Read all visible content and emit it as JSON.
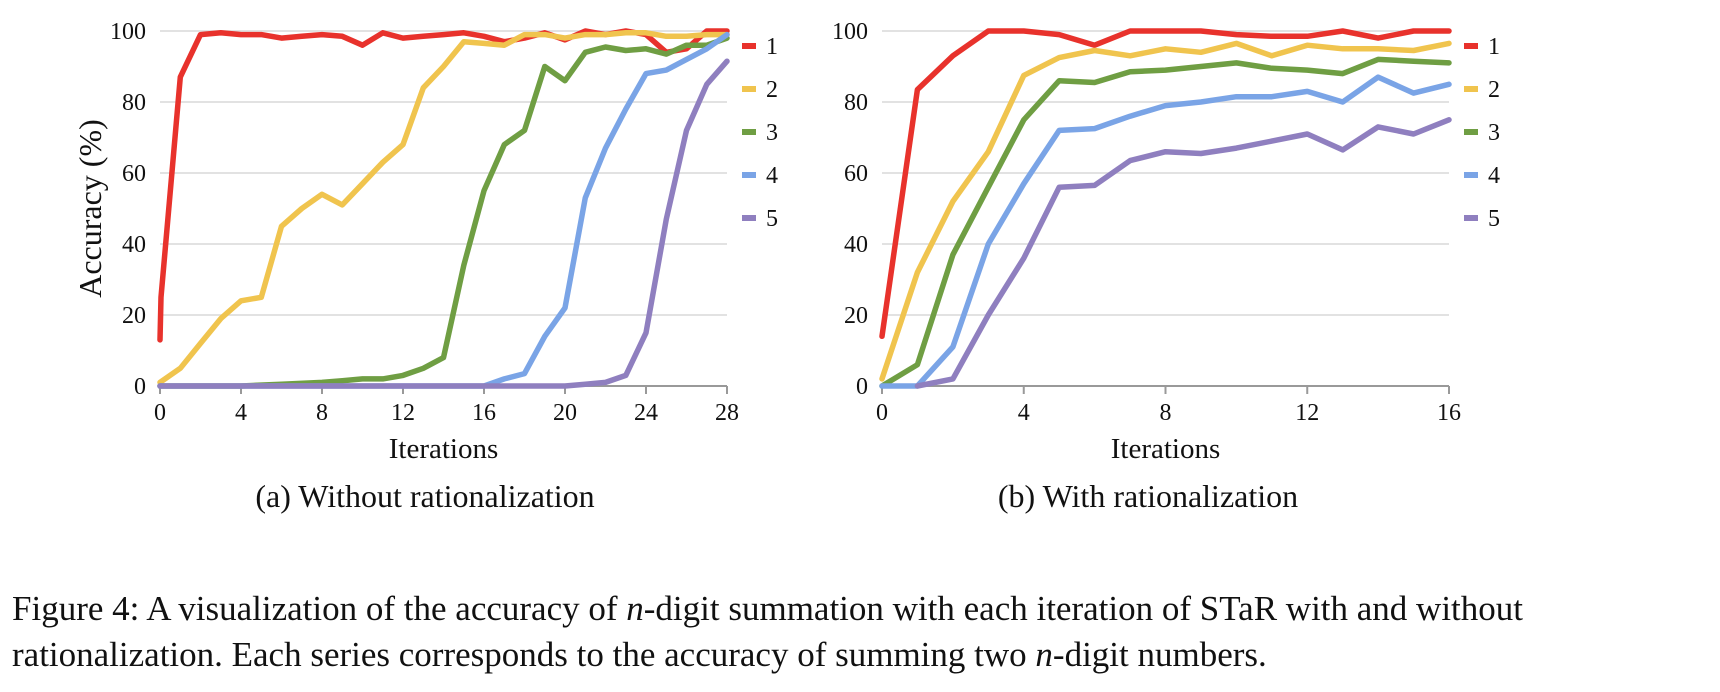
{
  "figure": {
    "caption": {
      "label": "Figure 4:",
      "part1": "A visualization of the accuracy of",
      "n1": "n",
      "part2": "-digit summation with each iteration of STaR with and without rationalization. Each series corresponds to the accuracy of summing two",
      "n2": "n",
      "part3": "-digit numbers."
    }
  },
  "colors": {
    "1": "#e8322c",
    "2": "#f0c44e",
    "3": "#6f9e43",
    "4": "#7aa4e6",
    "5": "#8f7fbf",
    "grid": "#d9d9d9",
    "axis": "#999999"
  },
  "chart_data": [
    {
      "type": "line",
      "subtitle": "(a) Without rationalization",
      "xlabel": "Iterations",
      "ylabel": "Accuracy (%)",
      "xlim": [
        0,
        28
      ],
      "ylim": [
        0,
        100
      ],
      "xticks": [
        0,
        4,
        8,
        12,
        16,
        20,
        24,
        28
      ],
      "yticks": [
        0,
        20,
        40,
        60,
        80,
        100
      ],
      "grid": "horizontal",
      "legend": "right",
      "series": [
        {
          "name": "1",
          "x": [
            0,
            0.05,
            1,
            2,
            3,
            4,
            5,
            6,
            7,
            8,
            9,
            10,
            11,
            12,
            13,
            14,
            15,
            16,
            17,
            18,
            19,
            20,
            21,
            22,
            23,
            24,
            25,
            26,
            27,
            28
          ],
          "values": [
            13,
            25,
            87,
            99,
            99.5,
            99,
            99,
            98,
            98.5,
            99,
            98.5,
            96,
            99.5,
            98,
            98.5,
            99,
            99.5,
            98.5,
            97,
            98,
            99.5,
            97.5,
            100,
            99,
            100,
            99,
            94,
            95,
            100,
            100
          ]
        },
        {
          "name": "2",
          "x": [
            0,
            1,
            2,
            3,
            4,
            5,
            6,
            7,
            8,
            9,
            10,
            11,
            12,
            13,
            14,
            15,
            16,
            17,
            18,
            19,
            20,
            21,
            22,
            23,
            24,
            25,
            26,
            27,
            28
          ],
          "values": [
            1,
            5,
            12,
            19,
            24,
            25,
            45,
            50,
            54,
            51,
            57,
            63,
            68,
            84,
            90,
            97,
            96.5,
            96,
            99,
            99,
            98,
            99,
            99,
            99.5,
            99.5,
            98.5,
            98.5,
            99,
            99
          ]
        },
        {
          "name": "3",
          "x": [
            0,
            2,
            4,
            6,
            8,
            9,
            10,
            11,
            12,
            13,
            14,
            15,
            16,
            17,
            18,
            19,
            20,
            21,
            22,
            23,
            24,
            25,
            26,
            27,
            28
          ],
          "values": [
            0,
            0,
            0,
            0.5,
            1,
            1.5,
            2,
            2,
            3,
            5,
            8,
            34,
            55,
            68,
            72,
            90,
            86,
            94,
            95.5,
            94.5,
            95,
            93.5,
            96,
            96,
            98
          ]
        },
        {
          "name": "4",
          "x": [
            0,
            4,
            8,
            12,
            16,
            17,
            18,
            19,
            20,
            21,
            22,
            23,
            24,
            25,
            26,
            27,
            28
          ],
          "values": [
            0,
            0,
            0,
            0,
            0,
            2,
            3.5,
            14,
            22,
            53,
            67,
            78,
            88,
            89,
            92,
            95,
            99
          ]
        },
        {
          "name": "5",
          "x": [
            0,
            4,
            8,
            12,
            16,
            20,
            21,
            22,
            23,
            24,
            25,
            26,
            27,
            28
          ],
          "values": [
            0,
            0,
            0,
            0,
            0,
            0,
            0.5,
            1,
            3,
            15,
            47,
            72,
            85,
            91.5
          ]
        }
      ]
    },
    {
      "type": "line",
      "subtitle": "(b) With rationalization",
      "xlabel": "Iterations",
      "ylabel": "",
      "xlim": [
        0,
        16
      ],
      "ylim": [
        0,
        100
      ],
      "xticks": [
        0,
        4,
        8,
        12,
        16
      ],
      "yticks": [
        0,
        20,
        40,
        60,
        80,
        100
      ],
      "grid": "horizontal",
      "legend": "right",
      "series": [
        {
          "name": "1",
          "x": [
            0,
            1,
            2,
            3,
            4,
            5,
            6,
            7,
            8,
            9,
            10,
            11,
            12,
            13,
            14,
            15,
            16
          ],
          "values": [
            14,
            83.5,
            93,
            100,
            100,
            99,
            96,
            100,
            100,
            100,
            99,
            98.5,
            98.5,
            100,
            98,
            100,
            100
          ]
        },
        {
          "name": "2",
          "x": [
            0,
            1,
            2,
            3,
            4,
            5,
            6,
            7,
            8,
            9,
            10,
            11,
            12,
            13,
            14,
            15,
            16
          ],
          "values": [
            2,
            32,
            52,
            66,
            87.5,
            92.5,
            94.5,
            93,
            95,
            94,
            96.5,
            93,
            96,
            95,
            95,
            94.5,
            96.5
          ]
        },
        {
          "name": "3",
          "x": [
            0,
            1,
            2,
            3,
            4,
            5,
            6,
            7,
            8,
            9,
            10,
            11,
            12,
            13,
            14,
            15,
            16
          ],
          "values": [
            0,
            6,
            37,
            56,
            75,
            86,
            85.5,
            88.5,
            89,
            90,
            91,
            89.5,
            89,
            88,
            92,
            91.5,
            91
          ]
        },
        {
          "name": "4",
          "x": [
            0,
            1,
            2,
            3,
            4,
            5,
            6,
            7,
            8,
            9,
            10,
            11,
            12,
            13,
            14,
            15,
            16
          ],
          "values": [
            0,
            0,
            11,
            40,
            57,
            72,
            72.5,
            76,
            79,
            80,
            81.5,
            81.5,
            83,
            80,
            87,
            82.5,
            85
          ]
        },
        {
          "name": "5",
          "x": [
            1,
            2,
            3,
            4,
            5,
            6,
            7,
            8,
            9,
            10,
            11,
            12,
            13,
            14,
            15,
            16
          ],
          "values": [
            0,
            2,
            20,
            36,
            56,
            56.5,
            63.5,
            66,
            65.5,
            67,
            69,
            71,
            66.5,
            73,
            71,
            75
          ]
        }
      ]
    }
  ]
}
